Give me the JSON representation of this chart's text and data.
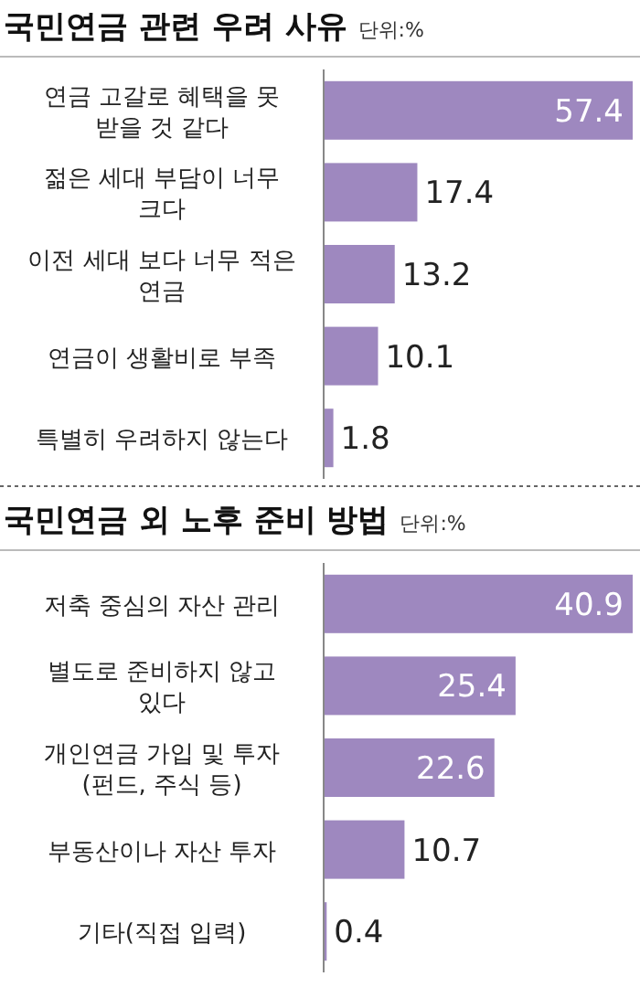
{
  "chart_data": [
    {
      "type": "bar",
      "orientation": "horizontal",
      "title": "국민연금 관련 우려 사유",
      "subtitle": "단위:%",
      "categories": [
        "연금 고갈로 혜택을 못 받을 것 같다",
        "젊은 세대 부담이 너무 크다",
        "이전 세대 보다 너무 적은 연금",
        "연금이 생활비로 부족",
        "특별히 우려하지 않는다"
      ],
      "values": [
        57.4,
        17.4,
        13.2,
        10.1,
        1.8
      ],
      "color": "#9e88bf",
      "data_labels": true
    },
    {
      "type": "bar",
      "orientation": "horizontal",
      "title": "국민연금 외 노후 준비 방법",
      "subtitle": "단위:%",
      "categories": [
        "저축 중심의 자산 관리",
        "별도로 준비하지 않고 있다",
        "개인연금 가입 및 투자 (펀드, 주식 등)",
        "부동산이나 자산 투자",
        "기타(직접 입력)"
      ],
      "values": [
        40.9,
        25.4,
        22.6,
        10.7,
        0.4
      ],
      "color": "#9e88bf",
      "data_labels": true
    }
  ]
}
